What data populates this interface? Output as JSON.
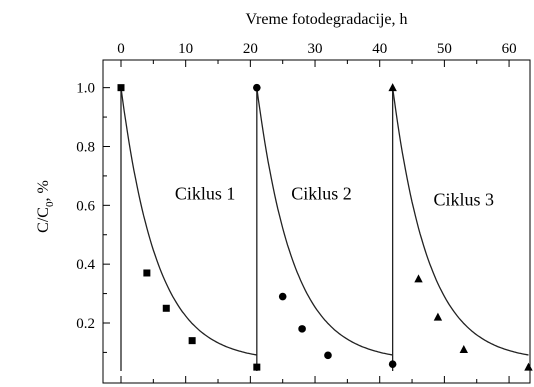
{
  "chart_data": {
    "type": "scatter",
    "title": "",
    "xlabel": "Vreme fotodegradacije, h",
    "xlabel_position": "top",
    "ylabel_main": "C/C",
    "ylabel_sub": "0",
    "ylabel_suffix": ", %",
    "xlim": [
      0,
      62
    ],
    "ylim": [
      0.03,
      1.06
    ],
    "xticks": [
      0,
      10,
      20,
      30,
      40,
      50,
      60
    ],
    "xtick_labels": [
      "0",
      "10",
      "20",
      "30",
      "40",
      "50",
      "60"
    ],
    "yticks": [
      0.2,
      0.4,
      0.6,
      0.8,
      1.0
    ],
    "ytick_labels": [
      "0.2",
      "0.4",
      "0.6",
      "0.8",
      "1.0"
    ],
    "grid": false,
    "legend": "none",
    "annotations": [
      {
        "text": "Ciklus 1",
        "x": 13,
        "y": 0.62
      },
      {
        "text": "Ciklus 2",
        "x": 31,
        "y": 0.62
      },
      {
        "text": "Ciklus 3",
        "x": 53,
        "y": 0.6
      }
    ],
    "cycle_starts": [
      0,
      21,
      42
    ],
    "series": [
      {
        "marker": "square",
        "x": [
          0,
          4,
          7,
          11,
          21
        ],
        "y": [
          1.0,
          0.37,
          0.25,
          0.14,
          0.05
        ]
      },
      {
        "marker": "circle",
        "x": [
          21,
          25,
          28,
          32,
          42
        ],
        "y": [
          1.0,
          0.29,
          0.18,
          0.09,
          0.06
        ]
      },
      {
        "marker": "triangle",
        "x": [
          42,
          46,
          49,
          53,
          63
        ],
        "y": [
          1.0,
          0.35,
          0.22,
          0.11,
          0.05
        ]
      }
    ],
    "fit_decay_rate": 0.18,
    "fit_plateau": 0.07,
    "colors": {
      "line": "#222222",
      "marker": "#000000",
      "background": "#ffffff"
    }
  }
}
